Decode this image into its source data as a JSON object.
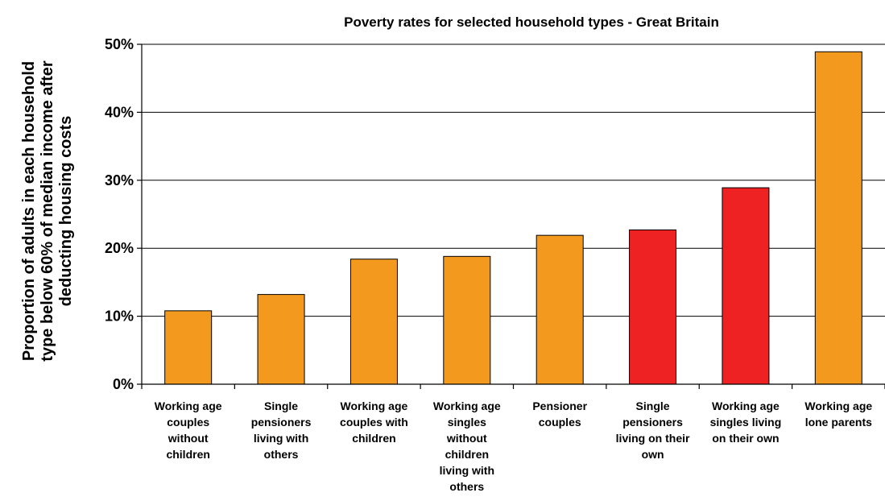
{
  "chart_data": {
    "type": "bar",
    "title": "Poverty rates for selected household types - Great Britain",
    "xlabel": "",
    "ylabel": [
      "Proportion of adults in each household",
      "type below 60% of median income after",
      "deducting housing costs"
    ],
    "yticks": [
      "0%",
      "10%",
      "20%",
      "30%",
      "40%",
      "50%"
    ],
    "ylim": [
      0,
      50
    ],
    "grid": true,
    "categories": [
      [
        "Working age",
        "couples",
        "without",
        "children"
      ],
      [
        "Single",
        "pensioners",
        "living with",
        "others"
      ],
      [
        "Working age",
        "couples with",
        "children"
      ],
      [
        "Working age",
        "singles",
        "without",
        "children",
        "living with",
        "others"
      ],
      [
        "Pensioner",
        "couples"
      ],
      [
        "Single",
        "pensioners",
        "living on their",
        "own"
      ],
      [
        "Working age",
        "singles living",
        "on their own"
      ],
      [
        "Working age",
        "lone parents"
      ]
    ],
    "values": [
      10.8,
      13.2,
      18.4,
      18.8,
      21.9,
      22.7,
      28.9,
      48.9
    ],
    "bar_colors": [
      "#F39A1E",
      "#F39A1E",
      "#F39A1E",
      "#F39A1E",
      "#F39A1E",
      "#EE2222",
      "#EE2222",
      "#F39A1E"
    ]
  }
}
